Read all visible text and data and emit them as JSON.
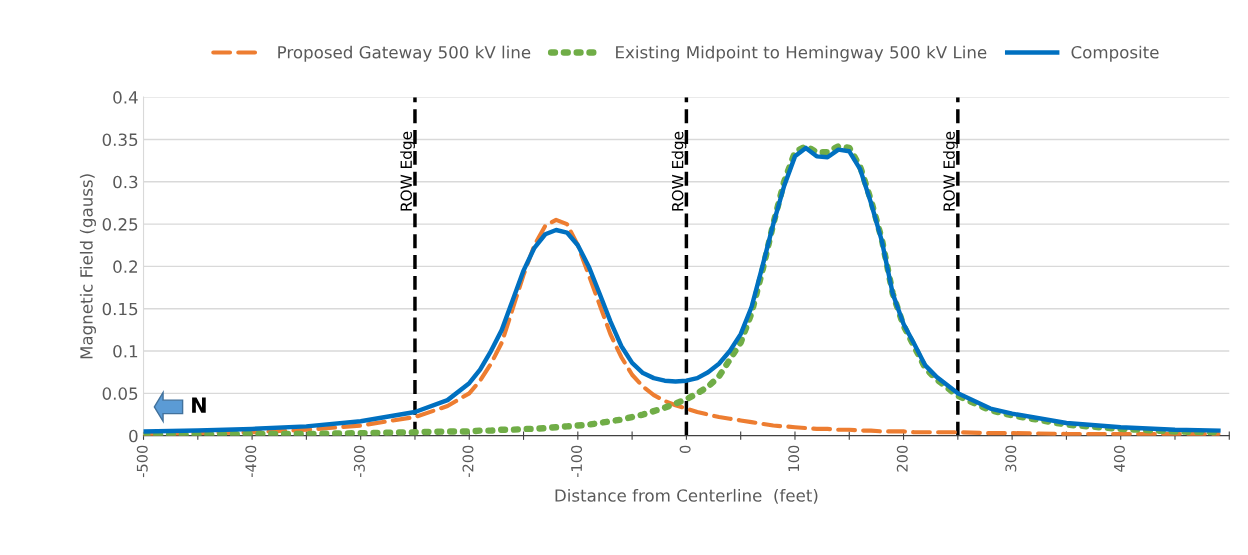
{
  "chart_data": {
    "type": "line",
    "xlabel": "Distance from Centerline  (feet)",
    "ylabel": "Magnetic Field (gauss)",
    "x": [
      -500,
      -450,
      -400,
      -350,
      -300,
      -250,
      -220,
      -200,
      -190,
      -180,
      -170,
      -160,
      -150,
      -140,
      -130,
      -120,
      -110,
      -100,
      -90,
      -80,
      -70,
      -60,
      -50,
      -40,
      -30,
      -20,
      -10,
      0,
      10,
      20,
      30,
      40,
      50,
      60,
      70,
      80,
      90,
      100,
      110,
      120,
      130,
      140,
      150,
      160,
      170,
      180,
      190,
      200,
      210,
      220,
      230,
      250,
      280,
      300,
      350,
      400,
      450,
      490
    ],
    "series": [
      {
        "name": "Proposed Gateway 500 kV line",
        "color": "#ed7d31",
        "line_style": "dashed",
        "values": [
          0.002,
          0.003,
          0.004,
          0.007,
          0.012,
          0.022,
          0.035,
          0.05,
          0.065,
          0.085,
          0.11,
          0.15,
          0.19,
          0.225,
          0.248,
          0.255,
          0.25,
          0.225,
          0.19,
          0.155,
          0.12,
          0.093,
          0.072,
          0.058,
          0.048,
          0.041,
          0.036,
          0.032,
          0.028,
          0.025,
          0.022,
          0.02,
          0.018,
          0.016,
          0.014,
          0.012,
          0.011,
          0.01,
          0.009,
          0.008,
          0.008,
          0.007,
          0.007,
          0.006,
          0.006,
          0.005,
          0.005,
          0.005,
          0.004,
          0.004,
          0.004,
          0.004,
          0.003,
          0.003,
          0.002,
          0.002,
          0.002,
          0.002
        ]
      },
      {
        "name": "Existing Midpoint to Hemingway 500 kV Line",
        "color": "#70ad47",
        "line_style": "dotted",
        "values": [
          0.001,
          0.001,
          0.002,
          0.002,
          0.003,
          0.004,
          0.005,
          0.005,
          0.006,
          0.006,
          0.007,
          0.007,
          0.008,
          0.008,
          0.009,
          0.01,
          0.011,
          0.012,
          0.013,
          0.015,
          0.017,
          0.019,
          0.022,
          0.025,
          0.029,
          0.033,
          0.038,
          0.043,
          0.05,
          0.058,
          0.07,
          0.09,
          0.11,
          0.145,
          0.195,
          0.25,
          0.3,
          0.335,
          0.342,
          0.335,
          0.335,
          0.342,
          0.34,
          0.318,
          0.278,
          0.232,
          0.168,
          0.13,
          0.105,
          0.08,
          0.067,
          0.047,
          0.03,
          0.024,
          0.013,
          0.008,
          0.005,
          0.004
        ]
      },
      {
        "name": "Composite",
        "color": "#0070c0",
        "line_style": "solid",
        "values": [
          0.005,
          0.006,
          0.008,
          0.011,
          0.017,
          0.028,
          0.042,
          0.062,
          0.078,
          0.1,
          0.125,
          0.16,
          0.195,
          0.222,
          0.238,
          0.243,
          0.24,
          0.225,
          0.2,
          0.168,
          0.135,
          0.106,
          0.086,
          0.074,
          0.068,
          0.065,
          0.064,
          0.065,
          0.068,
          0.075,
          0.085,
          0.1,
          0.12,
          0.152,
          0.2,
          0.25,
          0.295,
          0.33,
          0.34,
          0.33,
          0.329,
          0.338,
          0.336,
          0.315,
          0.275,
          0.23,
          0.168,
          0.132,
          0.108,
          0.083,
          0.07,
          0.05,
          0.032,
          0.026,
          0.015,
          0.01,
          0.007,
          0.006
        ]
      }
    ],
    "xlim": [
      -500,
      500
    ],
    "xticks": [
      -500,
      {
        "value": -450,
        "label": null
      },
      -400,
      {
        "value": -350,
        "label": null
      },
      -300,
      {
        "value": -250,
        "label": null
      },
      -200,
      {
        "value": -150,
        "label": null
      },
      -100,
      {
        "value": -50,
        "label": null
      },
      0,
      {
        "value": 50,
        "label": null
      },
      100,
      {
        "value": 150,
        "label": null
      },
      200,
      {
        "value": 250,
        "label": null
      },
      300,
      {
        "value": 350,
        "label": null
      },
      400,
      {
        "value": 450,
        "label": null
      },
      {
        "value": 500,
        "label": null
      }
    ],
    "ylim": [
      0,
      0.4
    ],
    "yticks": [
      0,
      0.05,
      0.1,
      0.15,
      0.2,
      0.25,
      0.3,
      0.35,
      0.4
    ],
    "ref_lines": [
      {
        "axis": "x",
        "value": -250,
        "label": "ROW Edge",
        "color": "#000000",
        "line_style": "dashed"
      },
      {
        "axis": "x",
        "value": 0,
        "label": "ROW Edge",
        "color": "#000000",
        "line_style": "dashed"
      },
      {
        "axis": "x",
        "value": 250,
        "label": "ROW Edge",
        "color": "#000000",
        "line_style": "dashed"
      }
    ],
    "annotations": [
      "N"
    ],
    "grid": "y",
    "legend": "top",
    "marker": "none"
  }
}
